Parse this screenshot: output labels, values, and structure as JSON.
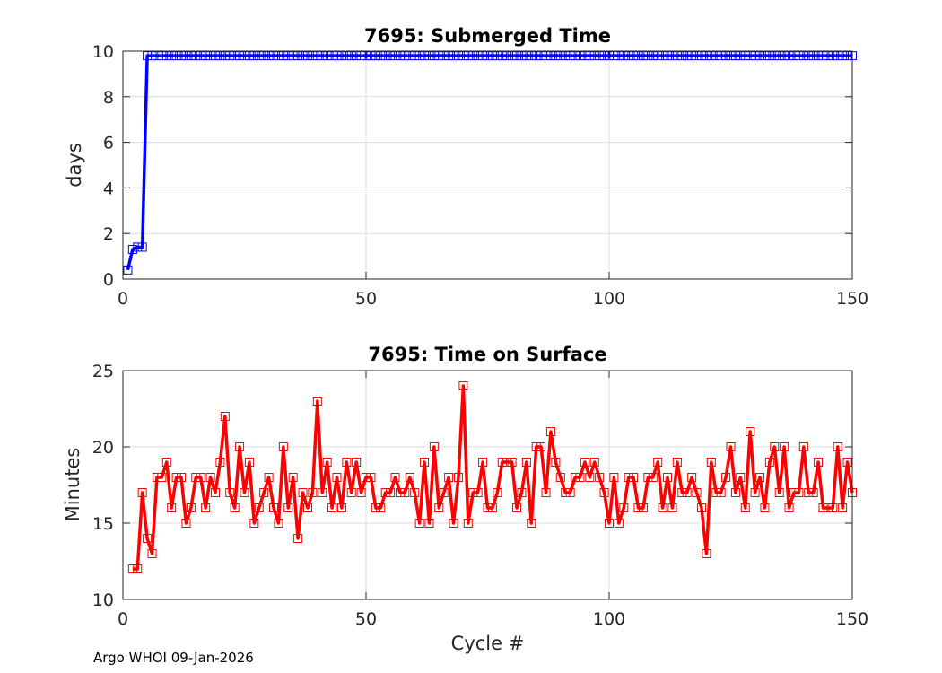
{
  "footer": "Argo WHOI 09-Jan-2026",
  "chart_data": [
    {
      "type": "line",
      "title": "7695: Submerged Time",
      "xlabel": "",
      "ylabel": "days",
      "xlim": [
        0,
        150
      ],
      "ylim": [
        0,
        10
      ],
      "xticks": [
        0,
        50,
        100,
        150
      ],
      "yticks": [
        0,
        2,
        4,
        6,
        8,
        10
      ],
      "grid": true,
      "color": "#0000ff",
      "marker": "square",
      "series": [
        {
          "name": "Submerged Time",
          "x": [
            1,
            2,
            3,
            4,
            5,
            6,
            7,
            8,
            9,
            10,
            11,
            12,
            13,
            14,
            15,
            16,
            17,
            18,
            19,
            20,
            21,
            22,
            23,
            24,
            25,
            26,
            27,
            28,
            29,
            30,
            31,
            32,
            33,
            34,
            35,
            36,
            37,
            38,
            39,
            40,
            41,
            42,
            43,
            44,
            45,
            46,
            47,
            48,
            49,
            50,
            51,
            52,
            53,
            54,
            55,
            56,
            57,
            58,
            59,
            60,
            61,
            62,
            63,
            64,
            65,
            66,
            67,
            68,
            69,
            70,
            71,
            72,
            73,
            74,
            75,
            76,
            77,
            78,
            79,
            80,
            81,
            82,
            83,
            84,
            85,
            86,
            87,
            88,
            89,
            90,
            91,
            92,
            93,
            94,
            95,
            96,
            97,
            98,
            99,
            100,
            101,
            102,
            103,
            104,
            105,
            106,
            107,
            108,
            109,
            110,
            111,
            112,
            113,
            114,
            115,
            116,
            117,
            118,
            119,
            120,
            121,
            122,
            123,
            124,
            125,
            126,
            127,
            128,
            129,
            130,
            131,
            132,
            133,
            134,
            135,
            136,
            137,
            138,
            139,
            140,
            141,
            142,
            143,
            144,
            145,
            146,
            147,
            148,
            149,
            150
          ],
          "values": [
            0.4,
            1.3,
            1.4,
            1.4,
            9.8,
            9.8,
            9.8,
            9.8,
            9.8,
            9.8,
            9.8,
            9.8,
            9.8,
            9.8,
            9.8,
            9.8,
            9.8,
            9.8,
            9.8,
            9.8,
            9.8,
            9.8,
            9.8,
            9.8,
            9.8,
            9.8,
            9.8,
            9.8,
            9.8,
            9.8,
            9.8,
            9.8,
            9.8,
            9.8,
            9.8,
            9.8,
            9.8,
            9.8,
            9.8,
            9.8,
            9.8,
            9.8,
            9.8,
            9.8,
            9.8,
            9.8,
            9.8,
            9.8,
            9.8,
            9.8,
            9.8,
            9.8,
            9.8,
            9.8,
            9.8,
            9.8,
            9.8,
            9.8,
            9.8,
            9.8,
            9.8,
            9.8,
            9.8,
            9.8,
            9.8,
            9.8,
            9.8,
            9.8,
            9.8,
            9.8,
            9.8,
            9.8,
            9.8,
            9.8,
            9.8,
            9.8,
            9.8,
            9.8,
            9.8,
            9.8,
            9.8,
            9.8,
            9.8,
            9.8,
            9.8,
            9.8,
            9.8,
            9.8,
            9.8,
            9.8,
            9.8,
            9.8,
            9.8,
            9.8,
            9.8,
            9.8,
            9.8,
            9.8,
            9.8,
            9.8,
            9.8,
            9.8,
            9.8,
            9.8,
            9.8,
            9.8,
            9.8,
            9.8,
            9.8,
            9.8,
            9.8,
            9.8,
            9.8,
            9.8,
            9.8,
            9.8,
            9.8,
            9.8,
            9.8,
            9.8,
            9.8,
            9.8,
            9.8,
            9.8,
            9.8,
            9.8,
            9.8,
            9.8,
            9.8,
            9.8,
            9.8,
            9.8,
            9.8,
            9.8,
            9.8,
            9.8,
            9.8,
            9.8,
            9.8,
            9.8,
            9.8,
            9.8,
            9.8,
            9.8,
            9.8,
            9.8,
            9.8,
            9.8,
            9.8,
            9.8
          ]
        }
      ]
    },
    {
      "type": "line",
      "title": "7695: Time on Surface",
      "xlabel": "Cycle #",
      "ylabel": "Minutes",
      "xlim": [
        0,
        150
      ],
      "ylim": [
        10,
        25
      ],
      "xticks": [
        0,
        50,
        100,
        150
      ],
      "yticks": [
        10,
        15,
        20,
        25
      ],
      "grid": true,
      "color": "#ff0000",
      "marker": "square",
      "series": [
        {
          "name": "Time on Surface",
          "x": [
            2,
            3,
            4,
            5,
            6,
            7,
            8,
            9,
            10,
            11,
            12,
            13,
            14,
            15,
            16,
            17,
            18,
            19,
            20,
            21,
            22,
            23,
            24,
            25,
            26,
            27,
            28,
            29,
            30,
            31,
            32,
            33,
            34,
            35,
            36,
            37,
            38,
            39,
            40,
            41,
            42,
            43,
            44,
            45,
            46,
            47,
            48,
            49,
            50,
            51,
            52,
            53,
            54,
            55,
            56,
            57,
            58,
            59,
            60,
            61,
            62,
            63,
            64,
            65,
            66,
            67,
            68,
            69,
            70,
            71,
            72,
            73,
            74,
            75,
            76,
            77,
            78,
            79,
            80,
            81,
            82,
            83,
            84,
            85,
            86,
            87,
            88,
            89,
            90,
            91,
            92,
            93,
            94,
            95,
            96,
            97,
            98,
            99,
            100,
            101,
            102,
            103,
            104,
            105,
            106,
            107,
            108,
            109,
            110,
            111,
            112,
            113,
            114,
            115,
            116,
            117,
            118,
            119,
            120,
            121,
            122,
            123,
            124,
            125,
            126,
            127,
            128,
            129,
            130,
            131,
            132,
            133,
            134,
            135,
            136,
            137,
            138,
            139,
            140,
            141,
            142,
            143,
            144,
            145,
            146,
            147,
            148,
            149,
            150
          ],
          "values": [
            12,
            12,
            17,
            14,
            13,
            18,
            18,
            19,
            16,
            18,
            18,
            15,
            16,
            18,
            18,
            16,
            18,
            17,
            19,
            22,
            17,
            16,
            20,
            17,
            19,
            15,
            16,
            17,
            18,
            16,
            15,
            20,
            16,
            18,
            14,
            17,
            16,
            17,
            23,
            17,
            19,
            16,
            18,
            16,
            19,
            17,
            19,
            17,
            18,
            18,
            16,
            16,
            17,
            17,
            18,
            17,
            17,
            18,
            17,
            15,
            19,
            15,
            20,
            16,
            17,
            18,
            15,
            18,
            24,
            15,
            17,
            17,
            19,
            16,
            16,
            17,
            19,
            19,
            19,
            16,
            17,
            19,
            15,
            20,
            20,
            17,
            21,
            19,
            18,
            17,
            17,
            18,
            18,
            19,
            18,
            19,
            18,
            17,
            15,
            18,
            15,
            16,
            18,
            18,
            16,
            16,
            18,
            18,
            19,
            16,
            18,
            16,
            19,
            17,
            17,
            18,
            17,
            16,
            13,
            19,
            17,
            17,
            18,
            20,
            17,
            18,
            16,
            21,
            17,
            18,
            16,
            19,
            20,
            17,
            20,
            16,
            17,
            17,
            20,
            17,
            17,
            19,
            16,
            16,
            16,
            20,
            16,
            19,
            17
          ]
        }
      ]
    }
  ]
}
